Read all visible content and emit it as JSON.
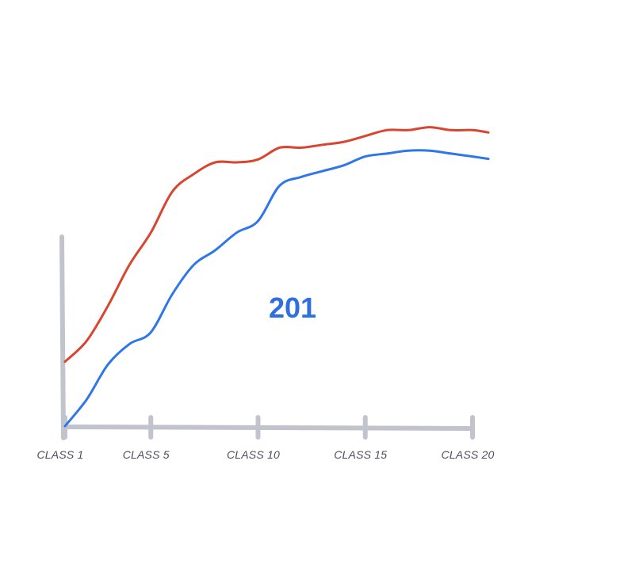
{
  "chart_data": {
    "type": "line",
    "x": [
      1,
      2,
      3,
      4,
      5,
      6,
      7,
      8,
      9,
      10,
      11,
      12,
      13,
      14,
      15,
      16,
      17,
      18,
      19,
      20
    ],
    "x_ticks": [
      {
        "x": 1,
        "label": "CLASS 1"
      },
      {
        "x": 5,
        "label": "CLASS 5"
      },
      {
        "x": 10,
        "label": "CLASS 10"
      },
      {
        "x": 15,
        "label": "CLASS 15"
      },
      {
        "x": 20,
        "label": "CLASS 20"
      }
    ],
    "xlim": [
      1,
      20
    ],
    "ylim": [
      0,
      100
    ],
    "grid": false,
    "series": [
      {
        "color": "#d9452f",
        "values": [
          22,
          29,
          41,
          55,
          66,
          80,
          86,
          90,
          90,
          91,
          95,
          95,
          96,
          97,
          99,
          101,
          101,
          102,
          101,
          101
        ]
      },
      {
        "color": "#2f77e8",
        "values": [
          0,
          9,
          21,
          28,
          32,
          45,
          55,
          60,
          66,
          70,
          82,
          85,
          87,
          89,
          92,
          93,
          94,
          94,
          93,
          92
        ]
      }
    ],
    "annotation": {
      "text": "201",
      "color": "#2f6fe0"
    }
  }
}
